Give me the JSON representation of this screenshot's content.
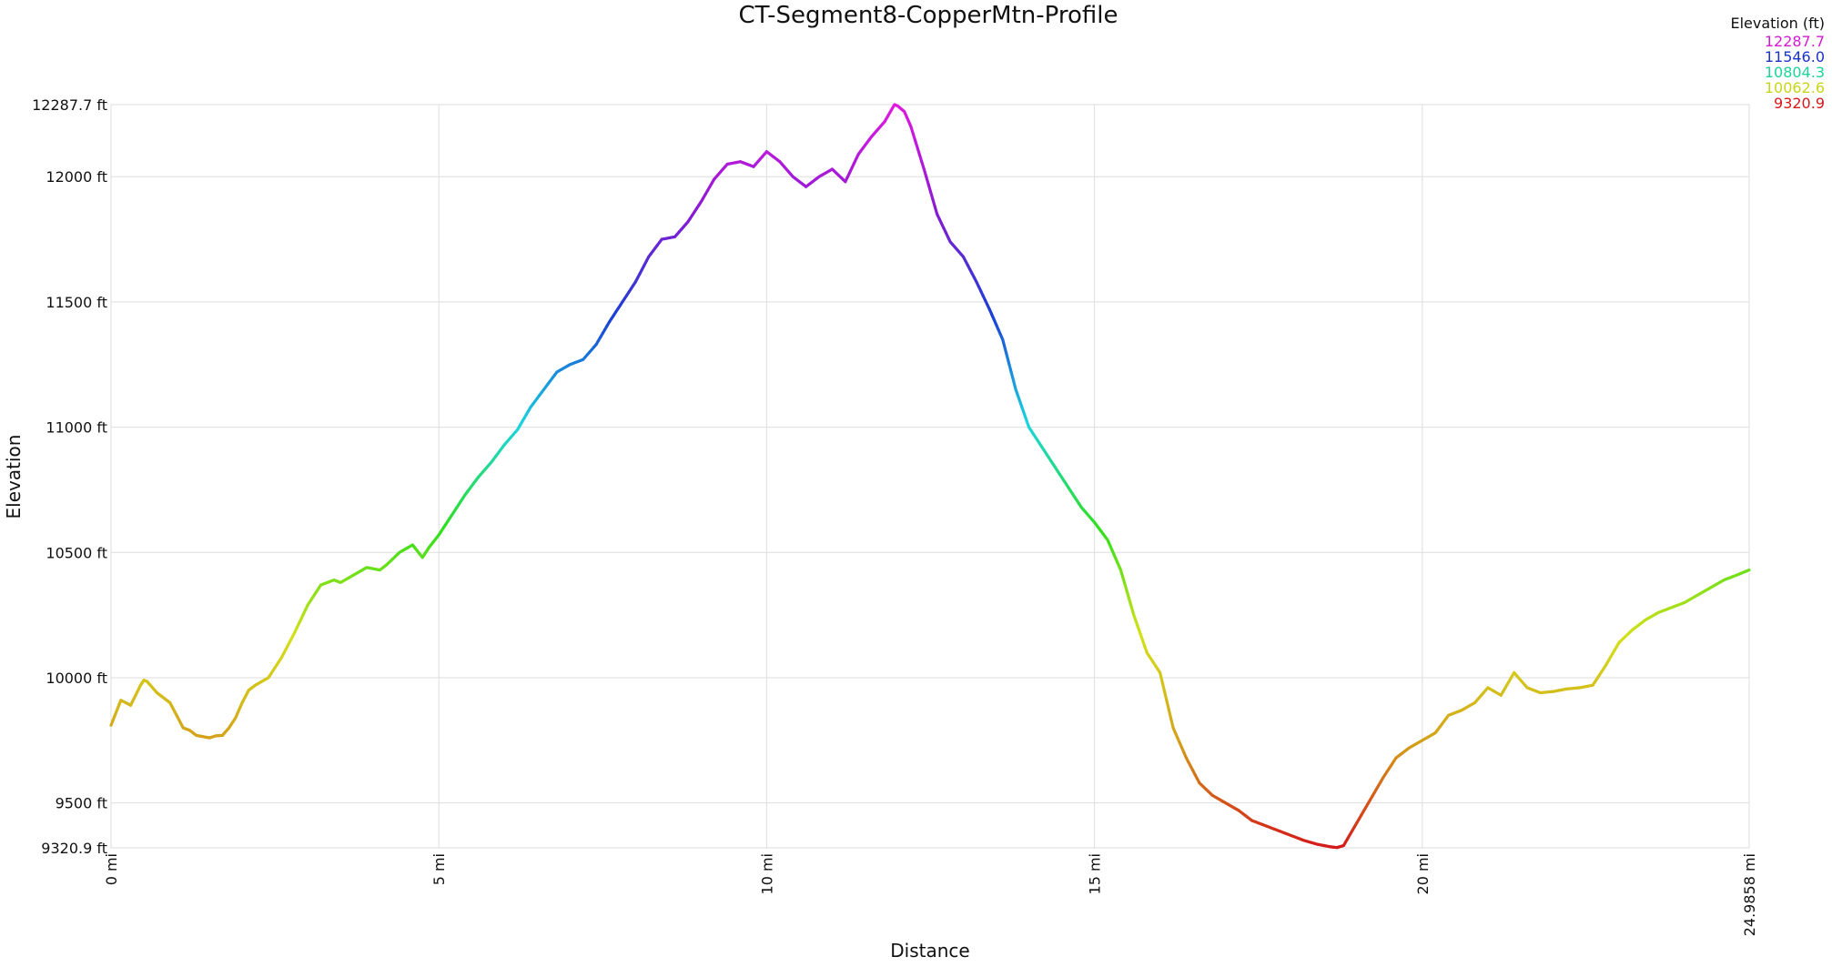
{
  "chart_data": {
    "type": "line",
    "title": "CT-Segment8-CopperMtn-Profile",
    "xlabel": "Distance",
    "ylabel": "Elevation",
    "xlim": [
      0,
      24.9858
    ],
    "ylim": [
      9320.9,
      12287.7
    ],
    "x_ticks": [
      {
        "value": 0,
        "label": "0 mi"
      },
      {
        "value": 5,
        "label": "5 mi"
      },
      {
        "value": 10,
        "label": "10 mi"
      },
      {
        "value": 15,
        "label": "15 mi"
      },
      {
        "value": 20,
        "label": "20 mi"
      },
      {
        "value": 24.9858,
        "label": "24.9858 mi"
      }
    ],
    "y_ticks": [
      {
        "value": 9320.9,
        "label": "9320.9 ft"
      },
      {
        "value": 9500,
        "label": "9500 ft"
      },
      {
        "value": 10000,
        "label": "10000 ft"
      },
      {
        "value": 10500,
        "label": "10500 ft"
      },
      {
        "value": 11000,
        "label": "11000 ft"
      },
      {
        "value": 11500,
        "label": "11500 ft"
      },
      {
        "value": 12000,
        "label": "12000 ft"
      },
      {
        "value": 12287.7,
        "label": "12287.7 ft"
      }
    ],
    "grid": true,
    "legend": {
      "title": "Elevation (ft)",
      "placement": "top-right",
      "entries": [
        {
          "label": "12287.7",
          "color": "#d41ad4"
        },
        {
          "label": "11546.0",
          "color": "#1a33c8"
        },
        {
          "label": "10804.3",
          "color": "#1ad49a"
        },
        {
          "label": "10062.6",
          "color": "#c8d41a"
        },
        {
          "label": "9320.9",
          "color": "#d41a1a"
        }
      ]
    },
    "color_scale": {
      "min": 9320.9,
      "max": 12287.7,
      "stops": [
        "#d41a1a",
        "#d4a01a",
        "#d4e01a",
        "#2ee01a",
        "#1ad4e0",
        "#1a40d4",
        "#8a1ad4",
        "#e01ae0"
      ]
    },
    "series": [
      {
        "x": [
          0,
          0.15,
          0.3,
          0.45,
          0.5,
          0.55,
          0.6,
          0.7,
          0.8,
          0.9,
          1.0,
          1.1,
          1.2,
          1.3,
          1.4,
          1.5,
          1.6,
          1.7,
          1.8,
          1.9,
          2.0,
          2.1,
          2.2,
          2.4,
          2.6,
          2.8,
          3.0,
          3.2,
          3.4,
          3.5,
          3.7,
          3.9,
          4.1,
          4.2,
          4.4,
          4.6,
          4.75,
          4.85,
          5.0,
          5.2,
          5.4,
          5.6,
          5.8,
          6.0,
          6.2,
          6.4,
          6.6,
          6.8,
          7.0,
          7.2,
          7.4,
          7.6,
          7.8,
          8.0,
          8.2,
          8.4,
          8.6,
          8.8,
          9.0,
          9.2,
          9.4,
          9.6,
          9.8,
          10.0,
          10.2,
          10.4,
          10.6,
          10.8,
          11.0,
          11.2,
          11.4,
          11.6,
          11.8,
          11.95,
          12.0,
          12.1,
          12.2,
          12.4,
          12.6,
          12.8,
          13.0,
          13.2,
          13.4,
          13.6,
          13.8,
          14.0,
          14.2,
          14.4,
          14.6,
          14.8,
          15.0,
          15.2,
          15.4,
          15.6,
          15.8,
          16.0,
          16.2,
          16.4,
          16.6,
          16.8,
          17.0,
          17.2,
          17.4,
          17.6,
          17.8,
          18.0,
          18.2,
          18.4,
          18.6,
          18.7,
          18.8,
          19.0,
          19.2,
          19.4,
          19.6,
          19.8,
          20.0,
          20.2,
          20.4,
          20.6,
          20.8,
          21.0,
          21.2,
          21.4,
          21.6,
          21.8,
          22.0,
          22.2,
          22.4,
          22.6,
          22.8,
          23.0,
          23.2,
          23.4,
          23.6,
          23.8,
          24.0,
          24.2,
          24.4,
          24.6,
          24.8,
          24.9858
        ],
        "y": [
          9810,
          9910,
          9890,
          9970,
          9990,
          9985,
          9970,
          9940,
          9920,
          9900,
          9850,
          9800,
          9790,
          9770,
          9765,
          9760,
          9768,
          9770,
          9800,
          9840,
          9900,
          9950,
          9970,
          10000,
          10080,
          10180,
          10290,
          10370,
          10390,
          10380,
          10410,
          10440,
          10430,
          10450,
          10500,
          10530,
          10480,
          10520,
          10570,
          10650,
          10730,
          10800,
          10860,
          10930,
          10990,
          11080,
          11150,
          11220,
          11250,
          11270,
          11330,
          11420,
          11500,
          11580,
          11680,
          11750,
          11760,
          11820,
          11900,
          11990,
          12050,
          12060,
          12040,
          12100,
          12060,
          12000,
          11960,
          12000,
          12030,
          11980,
          12090,
          12160,
          12220,
          12287.7,
          12282,
          12260,
          12200,
          12030,
          11850,
          11740,
          11680,
          11580,
          11470,
          11350,
          11150,
          11000,
          10920,
          10840,
          10760,
          10680,
          10620,
          10550,
          10430,
          10250,
          10100,
          10020,
          9800,
          9680,
          9580,
          9530,
          9500,
          9470,
          9430,
          9410,
          9390,
          9370,
          9350,
          9335,
          9325,
          9322,
          9330,
          9420,
          9510,
          9600,
          9680,
          9720,
          9750,
          9780,
          9850,
          9870,
          9900,
          9960,
          9930,
          10020,
          9960,
          9940,
          9945,
          9955,
          9960,
          9970,
          10050,
          10140,
          10190,
          10230,
          10260,
          10280,
          10300,
          10330,
          10360,
          10390,
          10410,
          10430
        ]
      }
    ]
  }
}
